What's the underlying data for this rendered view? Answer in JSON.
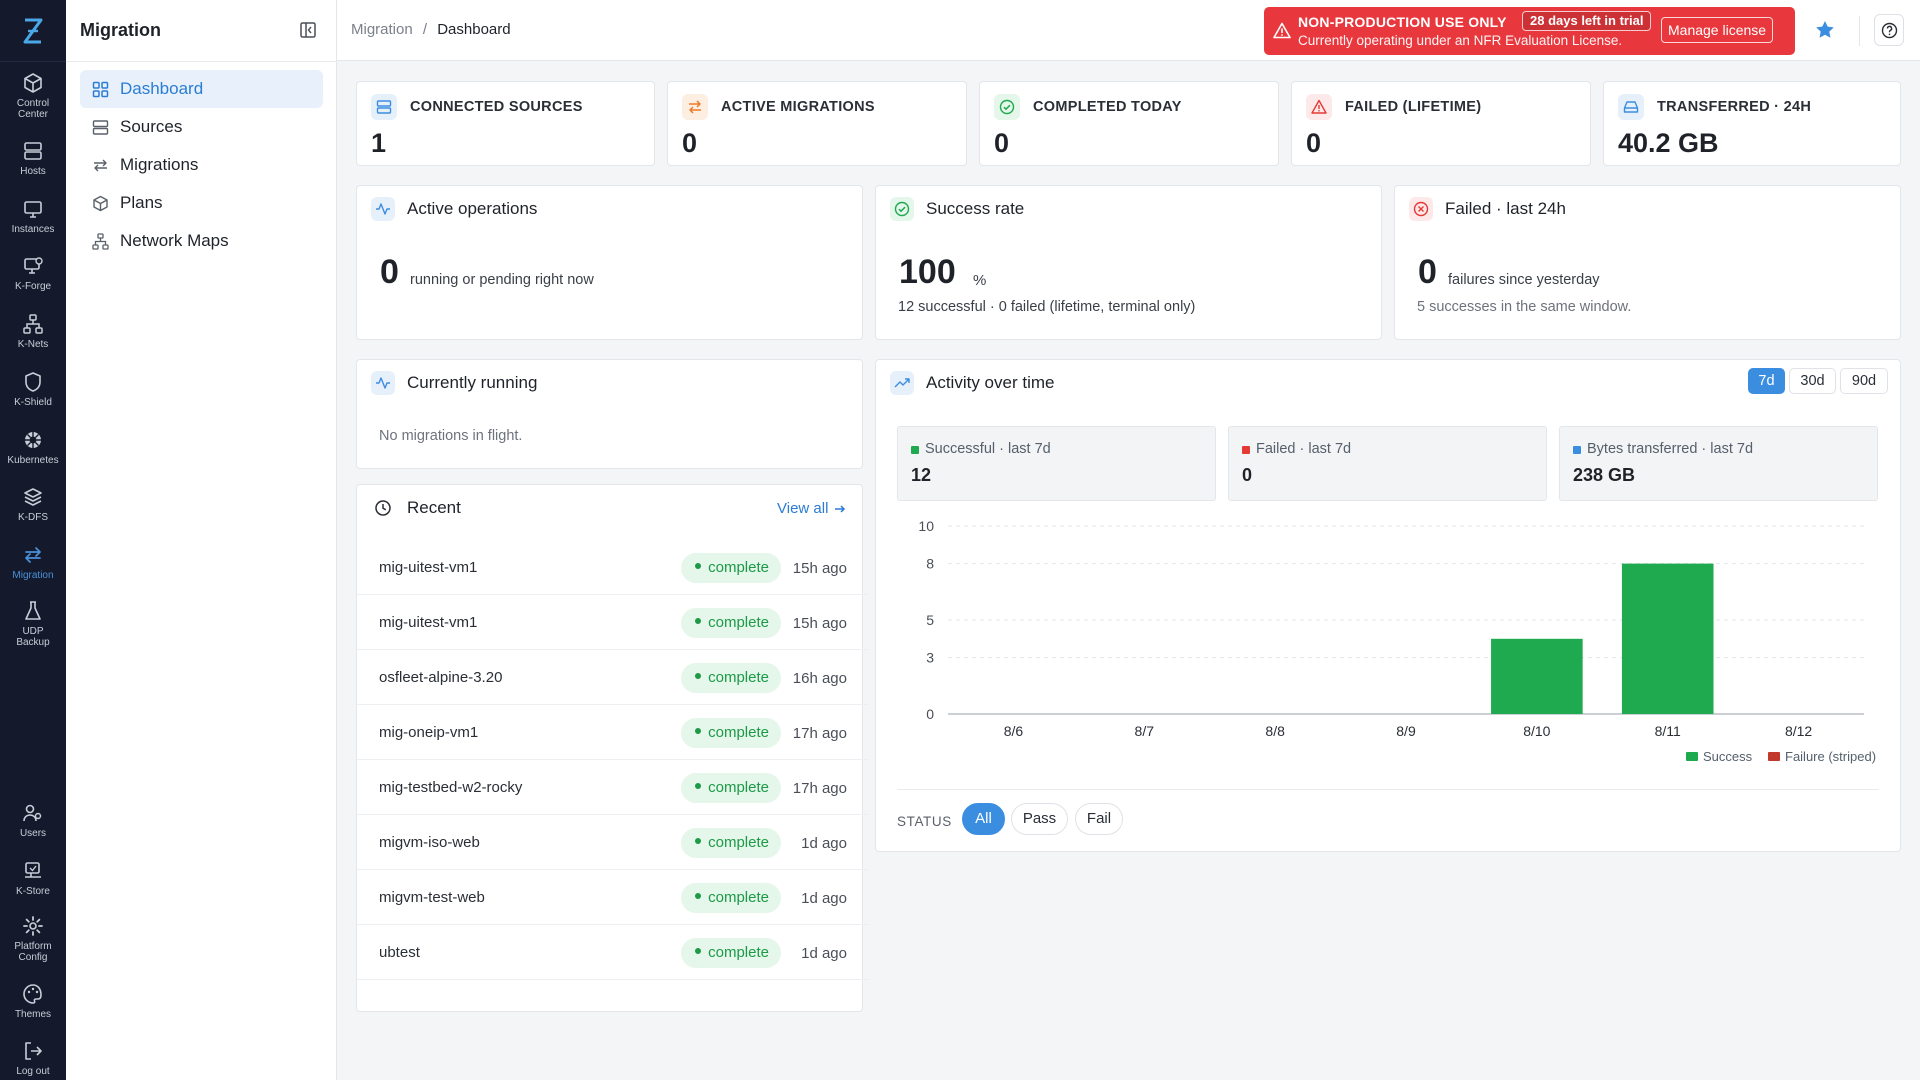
{
  "rail": {
    "items": [
      {
        "label": "Control Center",
        "icon": "cube-icon"
      },
      {
        "label": "Hosts",
        "icon": "server-icon"
      },
      {
        "label": "Instances",
        "icon": "monitor-icon"
      },
      {
        "label": "K-Forge",
        "icon": "forge-icon"
      },
      {
        "label": "K-Nets",
        "icon": "network-icon"
      },
      {
        "label": "K-Shield",
        "icon": "shield-icon"
      },
      {
        "label": "Kubernetes",
        "icon": "helm-icon"
      },
      {
        "label": "K-DFS",
        "icon": "layers-icon"
      },
      {
        "label": "Migration",
        "icon": "arrows-swap-icon"
      },
      {
        "label": "UDP Backup",
        "icon": "flask-icon"
      }
    ],
    "bottom": [
      {
        "label": "Users",
        "icon": "users-icon"
      },
      {
        "label": "K-Store",
        "icon": "store-icon"
      },
      {
        "label": "Platform Config",
        "icon": "gear-icon"
      },
      {
        "label": "Themes",
        "icon": "palette-icon"
      },
      {
        "label": "Log out",
        "icon": "logout-icon"
      }
    ]
  },
  "sidebar": {
    "title": "Migration",
    "items": [
      {
        "label": "Dashboard"
      },
      {
        "label": "Sources"
      },
      {
        "label": "Migrations"
      },
      {
        "label": "Plans"
      },
      {
        "label": "Network Maps"
      }
    ]
  },
  "header": {
    "breadcrumb_root": "Migration",
    "breadcrumb_sep": "/",
    "breadcrumb_current": "Dashboard",
    "license_title": "NON-PRODUCTION USE ONLY",
    "license_days": "28 days left in trial",
    "license_text": "Currently operating under an NFR Evaluation License.",
    "license_button": "Manage license"
  },
  "stats": [
    {
      "label": "CONNECTED SOURCES",
      "value": "1"
    },
    {
      "label": "ACTIVE MIGRATIONS",
      "value": "0"
    },
    {
      "label": "COMPLETED TODAY",
      "value": "0"
    },
    {
      "label": "FAILED (LIFETIME)",
      "value": "0"
    },
    {
      "label": "TRANSFERRED · 24H",
      "value": "40.2 GB"
    }
  ],
  "active_ops": {
    "title": "Active operations",
    "value": "0",
    "desc": "running or pending right now"
  },
  "success_rate": {
    "title": "Success rate",
    "value": "100",
    "unit": "%",
    "desc": "12 successful · 0 failed (lifetime, terminal only)"
  },
  "failed_24h": {
    "title": "Failed · last 24h",
    "value": "0",
    "desc": "failures since yesterday",
    "sub": "5 successes in the same window."
  },
  "running": {
    "title": "Currently running",
    "empty": "No migrations in flight."
  },
  "recent": {
    "title": "Recent",
    "view_all": "View all",
    "rows": [
      {
        "name": "mig-uitest-vm1",
        "status": "complete",
        "ago": "15h ago"
      },
      {
        "name": "mig-uitest-vm1",
        "status": "complete",
        "ago": "15h ago"
      },
      {
        "name": "osfleet-alpine-3.20",
        "status": "complete",
        "ago": "16h ago"
      },
      {
        "name": "mig-oneip-vm1",
        "status": "complete",
        "ago": "17h ago"
      },
      {
        "name": "mig-testbed-w2-rocky",
        "status": "complete",
        "ago": "17h ago"
      },
      {
        "name": "migvm-iso-web",
        "status": "complete",
        "ago": "1d ago"
      },
      {
        "name": "migvm-test-web",
        "status": "complete",
        "ago": "1d ago"
      },
      {
        "name": "ubtest",
        "status": "complete",
        "ago": "1d ago"
      }
    ]
  },
  "activity": {
    "title": "Activity over time",
    "ranges": [
      "7d",
      "30d",
      "90d"
    ],
    "selected_range": "7d",
    "minis": [
      {
        "label": "Successful · last 7d",
        "value": "12",
        "color": "#1faa50"
      },
      {
        "label": "Failed · last 7d",
        "value": "0",
        "color": "#e53935"
      },
      {
        "label": "Bytes transferred · last 7d",
        "value": "238 GB",
        "color": "#3b8de0"
      }
    ],
    "status_label": "STATUS",
    "filters": [
      "All",
      "Pass",
      "Fail"
    ],
    "selected_filter": "All"
  },
  "chart_data": {
    "type": "bar",
    "categories": [
      "8/6",
      "8/7",
      "8/8",
      "8/9",
      "8/10",
      "8/11",
      "8/12"
    ],
    "series": [
      {
        "name": "Success",
        "values": [
          0,
          0,
          0,
          0,
          4,
          8,
          0
        ],
        "color": "#1faa50"
      },
      {
        "name": "Failure (striped)",
        "values": [
          0,
          0,
          0,
          0,
          0,
          0,
          0
        ],
        "color": "#c0392b"
      }
    ],
    "yticks": [
      "10",
      "8",
      "5",
      "3",
      "0"
    ],
    "ylim": [
      0,
      10
    ],
    "grid": true,
    "legend_position": "bottom-right"
  }
}
